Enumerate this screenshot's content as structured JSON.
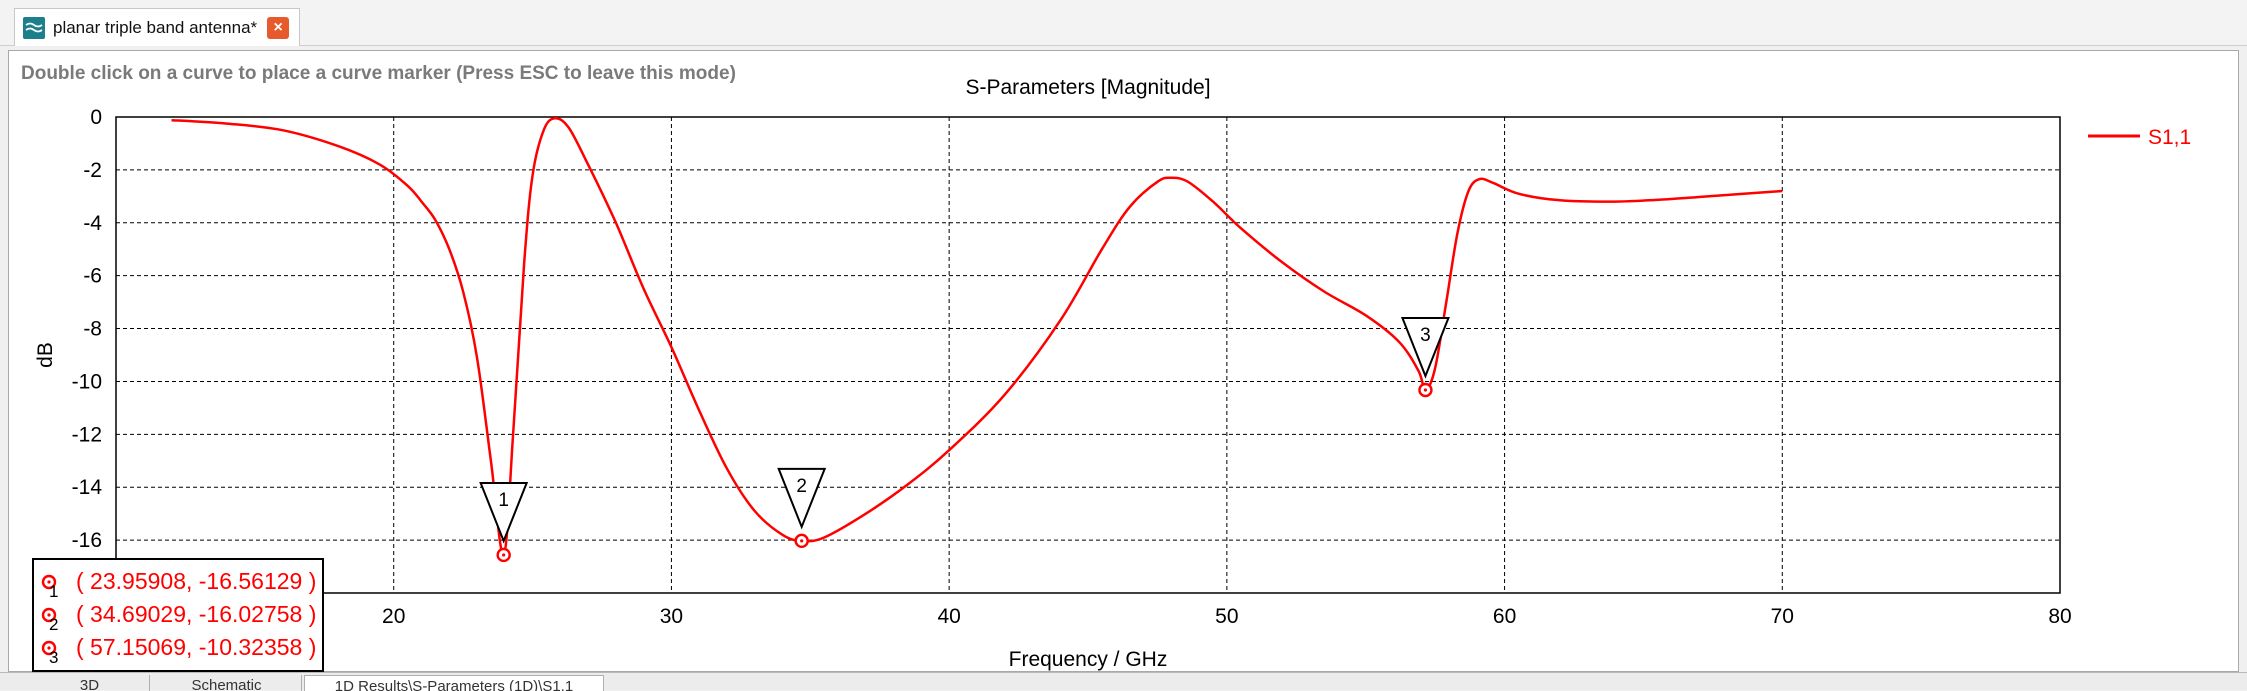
{
  "window": {
    "tab_title": "planar triple band antenna*",
    "tab_close_glyph": "×"
  },
  "plot": {
    "hint": "Double click on a curve to place a curve marker (Press ESC to leave this mode)"
  },
  "chart_data": {
    "type": "line",
    "title": "S-Parameters [Magnitude]",
    "xlabel": "Frequency / GHz",
    "ylabel": "dB",
    "xlim": [
      10,
      80
    ],
    "ylim": [
      -18,
      0
    ],
    "grid": true,
    "grid_style": "dashed",
    "xticks": [
      20,
      30,
      40,
      50,
      60,
      70,
      80
    ],
    "yticks": [
      0,
      -2,
      -4,
      -6,
      -8,
      -10,
      -12,
      -14,
      -16
    ],
    "legend": {
      "position": "top-right",
      "entries": [
        "S1,1"
      ]
    },
    "series": [
      {
        "name": "S1,1",
        "color": "#ff0000",
        "points": [
          [
            12.0,
            -0.12
          ],
          [
            14.0,
            -0.25
          ],
          [
            16.0,
            -0.5
          ],
          [
            18.0,
            -1.1
          ],
          [
            19.5,
            -1.8
          ],
          [
            20.5,
            -2.6
          ],
          [
            21.0,
            -3.2
          ],
          [
            21.5,
            -3.9
          ],
          [
            22.0,
            -5.0
          ],
          [
            22.5,
            -6.6
          ],
          [
            23.0,
            -9.1
          ],
          [
            23.5,
            -13.0
          ],
          [
            23.95908,
            -16.56129
          ],
          [
            24.3,
            -12.0
          ],
          [
            24.7,
            -5.5
          ],
          [
            25.0,
            -2.2
          ],
          [
            25.4,
            -0.5
          ],
          [
            25.8,
            -0.05
          ],
          [
            26.3,
            -0.4
          ],
          [
            27.0,
            -1.8
          ],
          [
            28.0,
            -4.0
          ],
          [
            29.0,
            -6.5
          ],
          [
            30.0,
            -8.7
          ],
          [
            31.0,
            -11.1
          ],
          [
            32.0,
            -13.3
          ],
          [
            33.0,
            -14.9
          ],
          [
            34.0,
            -15.8
          ],
          [
            34.69029,
            -16.02758
          ],
          [
            35.5,
            -15.9
          ],
          [
            37.0,
            -15.0
          ],
          [
            38.5,
            -13.9
          ],
          [
            40.0,
            -12.6
          ],
          [
            42.0,
            -10.5
          ],
          [
            44.0,
            -7.7
          ],
          [
            45.5,
            -5.0
          ],
          [
            46.5,
            -3.4
          ],
          [
            47.5,
            -2.45
          ],
          [
            48.0,
            -2.3
          ],
          [
            48.6,
            -2.45
          ],
          [
            49.5,
            -3.2
          ],
          [
            50.5,
            -4.2
          ],
          [
            52.0,
            -5.5
          ],
          [
            53.5,
            -6.6
          ],
          [
            55.0,
            -7.5
          ],
          [
            56.2,
            -8.5
          ],
          [
            56.9,
            -9.6
          ],
          [
            57.15069,
            -10.32358
          ],
          [
            57.5,
            -9.5
          ],
          [
            57.9,
            -7.0
          ],
          [
            58.3,
            -4.4
          ],
          [
            58.7,
            -2.8
          ],
          [
            59.1,
            -2.35
          ],
          [
            59.6,
            -2.5
          ],
          [
            60.5,
            -2.9
          ],
          [
            62.0,
            -3.15
          ],
          [
            64.0,
            -3.2
          ],
          [
            66.0,
            -3.1
          ],
          [
            68.0,
            -2.95
          ],
          [
            70.0,
            -2.8
          ]
        ]
      }
    ],
    "markers": [
      {
        "id": "1",
        "x": 23.95908,
        "y": -16.56129,
        "label": "( 23.95908, -16.56129 )"
      },
      {
        "id": "2",
        "x": 34.69029,
        "y": -16.02758,
        "label": "( 34.69029, -16.02758 )"
      },
      {
        "id": "3",
        "x": 57.15069,
        "y": -10.32358,
        "label": "( 57.15069, -10.32358 )"
      }
    ]
  },
  "bottom_tabs": [
    "3D",
    "Schematic",
    "1D Results\\S-Parameters (1D)\\S1,1"
  ]
}
